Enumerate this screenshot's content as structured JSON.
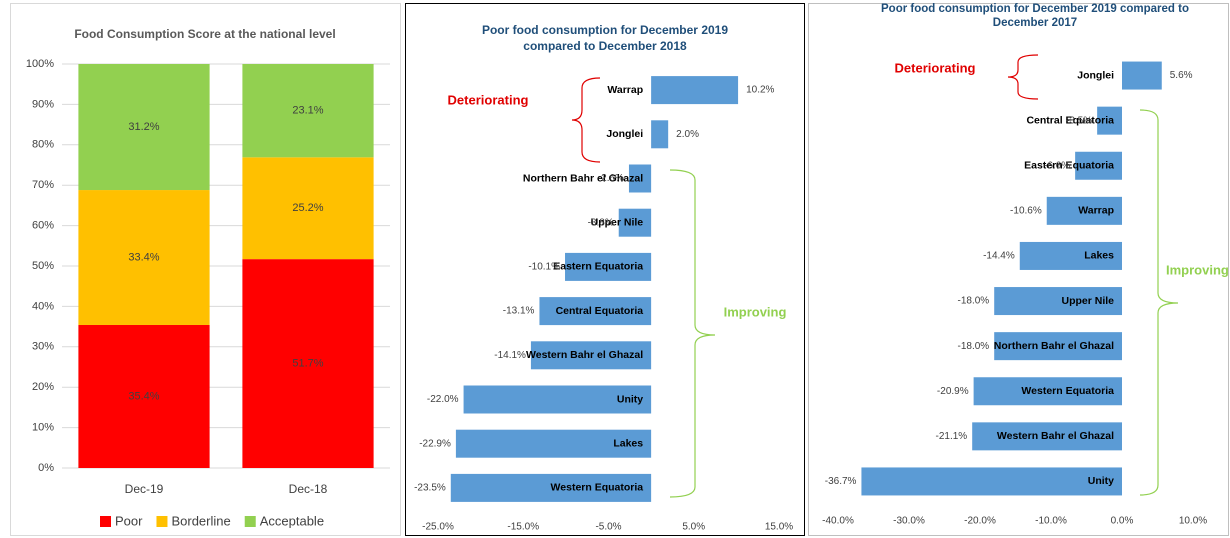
{
  "chart_data": [
    {
      "type": "bar",
      "stacked": true,
      "title": "Food Consumption Score at the national level",
      "categories": [
        "Dec-19",
        "Dec-18"
      ],
      "series": [
        {
          "name": "Poor",
          "color": "#ff0000",
          "values": [
            35.4,
            51.7
          ],
          "value_labels": [
            "35.4%",
            "51.7%"
          ]
        },
        {
          "name": "Borderline",
          "color": "#ffc000",
          "values": [
            33.4,
            25.2
          ],
          "value_labels": [
            "33.4%",
            "25.2%"
          ]
        },
        {
          "name": "Acceptable",
          "color": "#92d050",
          "values": [
            31.2,
            23.1
          ],
          "value_labels": [
            "31.2%",
            "23.1%"
          ]
        }
      ],
      "ylim": [
        0,
        100
      ],
      "yticks": [
        {
          "value": 0,
          "label": "0%"
        },
        {
          "value": 10,
          "label": "10%"
        },
        {
          "value": 20,
          "label": "20%"
        },
        {
          "value": 30,
          "label": "30%"
        },
        {
          "value": 40,
          "label": "40%"
        },
        {
          "value": 50,
          "label": "50%"
        },
        {
          "value": 60,
          "label": "60%"
        },
        {
          "value": 70,
          "label": "70%"
        },
        {
          "value": 80,
          "label": "80%"
        },
        {
          "value": 90,
          "label": "90%"
        },
        {
          "value": 100,
          "label": "100%"
        }
      ],
      "grid": true,
      "legend": "bottom"
    },
    {
      "type": "barh",
      "title": "Poor food consumption for December 2019 compared to December 2018",
      "categories": [
        "Warrap",
        "Jonglei",
        "Northern Bahr el Ghazal",
        "Upper Nile",
        "Eastern Equatoria",
        "Central Equatoria",
        "Western Bahr el Ghazal",
        "Unity",
        "Lakes",
        "Western Equatoria"
      ],
      "values": [
        10.2,
        2.0,
        -2.6,
        -3.8,
        -10.1,
        -13.1,
        -14.1,
        -22.0,
        -22.9,
        -23.5
      ],
      "value_labels": [
        "10.2%",
        "2.0%",
        "-2.6%",
        "-3.8%",
        "-10.1%",
        "-13.1%",
        "-14.1%",
        "-22.0%",
        "-22.9%",
        "-23.5%"
      ],
      "color": "#5b9bd5",
      "xlim": [
        -25,
        15
      ],
      "xticks": [
        {
          "value": -25,
          "label": "-25.0%"
        },
        {
          "value": -15,
          "label": "-15.0%"
        },
        {
          "value": -5,
          "label": "-5.0%"
        },
        {
          "value": 5,
          "label": "5.0%"
        },
        {
          "value": 15,
          "label": "15.0%"
        }
      ],
      "annotations": [
        "Deteriorating",
        "Improving"
      ]
    },
    {
      "type": "barh",
      "title": "Poor food consumption for December 2019 compared to December 2017",
      "categories": [
        "Jonglei",
        "Central Equatoria",
        "Eastern Equatoria",
        "Warrap",
        "Lakes",
        "Upper Nile",
        "Northern Bahr el Ghazal",
        "Western Equatoria",
        "Western Bahr el Ghazal",
        "Unity"
      ],
      "values": [
        5.6,
        -3.5,
        -6.6,
        -10.6,
        -14.4,
        -18.0,
        -18.0,
        -20.9,
        -21.1,
        -36.7
      ],
      "value_labels": [
        "5.6%",
        "-3.5%",
        "-6.6%",
        "-10.6%",
        "-14.4%",
        "-18.0%",
        "-18.0%",
        "-20.9%",
        "-21.1%",
        "-36.7%"
      ],
      "color": "#5b9bd5",
      "xlim": [
        -40,
        10
      ],
      "xticks": [
        {
          "value": -40,
          "label": "-40.0%"
        },
        {
          "value": -30,
          "label": "-30.0%"
        },
        {
          "value": -20,
          "label": "-20.0%"
        },
        {
          "value": -10,
          "label": "-10.0%"
        },
        {
          "value": 0,
          "label": "0.0%"
        },
        {
          "value": 10,
          "label": "10.0%"
        }
      ],
      "annotations": [
        "Deteriorating",
        "Improving"
      ]
    }
  ]
}
